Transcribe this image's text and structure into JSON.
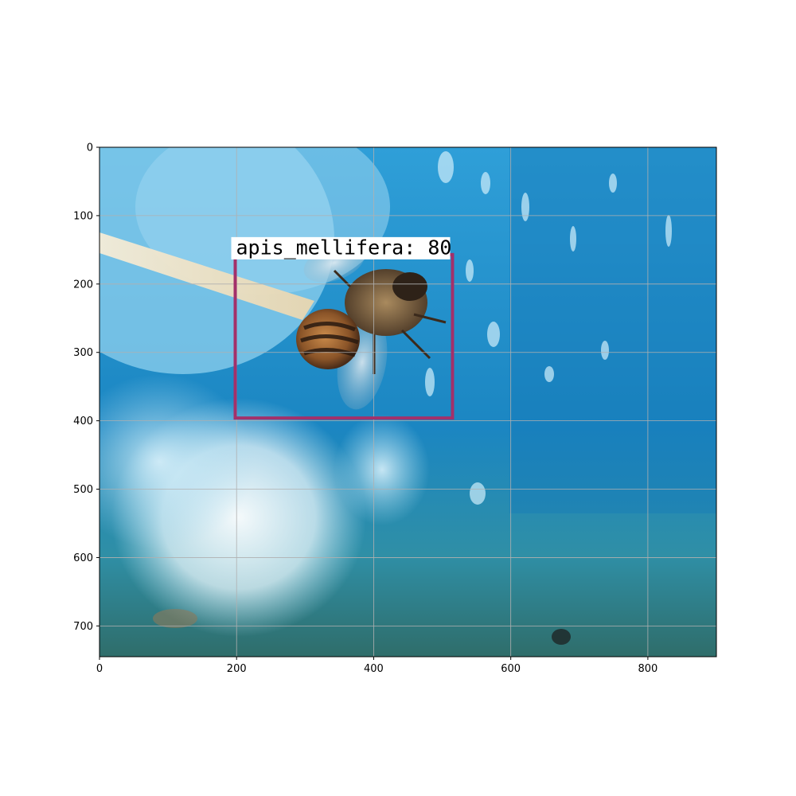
{
  "image": {
    "subject": "honey bee on a blue surface",
    "width": 900,
    "height": 745
  },
  "axes": {
    "xlim": [
      0,
      900
    ],
    "ylim": [
      745,
      0
    ],
    "grid": true,
    "x_ticks": [
      0,
      200,
      400,
      600,
      800
    ],
    "y_ticks": [
      0,
      100,
      200,
      300,
      400,
      500,
      600,
      700
    ]
  },
  "detections": [
    {
      "label": "apis_mellifera: 80",
      "class": "apis_mellifera",
      "score": 80,
      "box": {
        "x_min": 198,
        "y_min": 157,
        "x_max": 515,
        "y_max": 396
      },
      "color": "#a3306a"
    }
  ]
}
